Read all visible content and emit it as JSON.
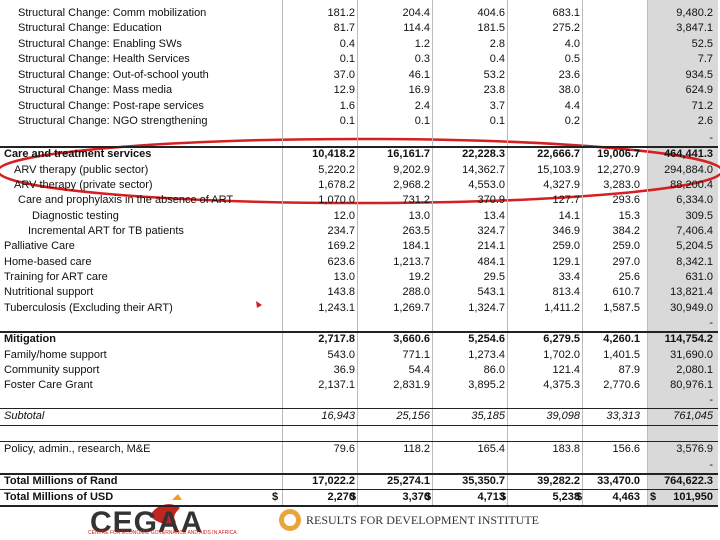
{
  "table": {
    "rows": [
      {
        "label": "Structural Change: Comm mobilization",
        "values": [
          "181.2",
          "204.4",
          "404.6",
          "683.1"
        ],
        "total": "9,480.2"
      },
      {
        "label": "Structural Change: Education",
        "values": [
          "81.7",
          "114.4",
          "181.5",
          "275.2"
        ],
        "total": "3,847.1"
      },
      {
        "label": "Structural Change: Enabling SWs",
        "values": [
          "0.4",
          "1.2",
          "2.8",
          "4.0"
        ],
        "total": "52.5"
      },
      {
        "label": "Structural Change: Health Services",
        "values": [
          "0.1",
          "0.3",
          "0.4",
          "0.5"
        ],
        "total": "7.7"
      },
      {
        "label": "Structural Change: Out-of-school youth",
        "values": [
          "37.0",
          "46.1",
          "53.2",
          "23.6"
        ],
        "total": "934.5"
      },
      {
        "label": "Structural Change: Mass media",
        "values": [
          "12.9",
          "16.9",
          "23.8",
          "38.0"
        ],
        "total": "624.9"
      },
      {
        "label": "Structural Change: Post-rape services",
        "values": [
          "1.6",
          "2.4",
          "3.7",
          "4.4"
        ],
        "total": "71.2"
      },
      {
        "label": "Structural Change: NGO strengthening",
        "values": [
          "0.1",
          "0.1",
          "0.1",
          "0.2"
        ],
        "total": "2.6"
      },
      {
        "total": "-"
      },
      {
        "label": "Care and treatment services",
        "values": [
          "10,418.2",
          "16,161.7",
          "22,228.3",
          "22,666.7",
          "19,006.7"
        ],
        "total": "464,441.3"
      },
      {
        "label": "ARV therapy (public sector)",
        "values": [
          "5,220.2",
          "9,202.9",
          "14,362.7",
          "15,103.9",
          "12,270.9"
        ],
        "total": "294,884.0"
      },
      {
        "label": "ARV therapy (private sector)",
        "values": [
          "1,678.2",
          "2,968.2",
          "4,553.0",
          "4,327.9",
          "3,283.0"
        ],
        "total": "88,200.4"
      },
      {
        "label": "Care and prophylaxis in the absence of ART",
        "values": [
          "1,070.0",
          "731.2",
          "370.9",
          "127.7",
          "293.6"
        ],
        "total": "6,334.0"
      },
      {
        "label": "Diagnostic testing",
        "values": [
          "12.0",
          "13.0",
          "13.4",
          "14.1",
          "15.3"
        ],
        "total": "309.5"
      },
      {
        "label": "Incremental ART for TB patients",
        "values": [
          "234.7",
          "263.5",
          "324.7",
          "346.9",
          "384.2"
        ],
        "total": "7,406.4"
      },
      {
        "label": "Palliative Care",
        "values": [
          "169.2",
          "184.1",
          "214.1",
          "259.0",
          "259.0"
        ],
        "total": "5,204.5"
      },
      {
        "label": "Home-based care",
        "values": [
          "623.6",
          "1,213.7",
          "484.1",
          "129.1",
          "297.0"
        ],
        "total": "8,342.1"
      },
      {
        "label": "Training for ART care",
        "values": [
          "13.0",
          "19.2",
          "29.5",
          "33.4",
          "25.6"
        ],
        "total": "631.0"
      },
      {
        "label": "Nutritional support",
        "values": [
          "143.8",
          "288.0",
          "543.1",
          "813.4",
          "610.7"
        ],
        "total": "13,821.4"
      },
      {
        "label": "Tuberculosis (Excluding their ART)",
        "values": [
          "1,243.1",
          "1,269.7",
          "1,324.7",
          "1,411.2",
          "1,587.5"
        ],
        "total": "30,949.0"
      },
      {
        "total": "-"
      },
      {
        "label": "Mitigation",
        "values": [
          "2,717.8",
          "3,660.6",
          "5,254.6",
          "6,279.5",
          "4,260.1"
        ],
        "total": "114,754.2"
      },
      {
        "label": "Family/home support",
        "values": [
          "543.0",
          "771.1",
          "1,273.4",
          "1,702.0",
          "1,401.5"
        ],
        "total": "31,690.0"
      },
      {
        "label": "Community support",
        "values": [
          "36.9",
          "54.4",
          "86.0",
          "121.4",
          "87.9"
        ],
        "total": "2,080.1"
      },
      {
        "label": "Foster Care Grant",
        "values": [
          "2,137.1",
          "2,831.9",
          "3,895.2",
          "4,375.3",
          "2,770.6"
        ],
        "total": "80,976.1"
      },
      {
        "total": "-"
      },
      {
        "label": "Subtotal",
        "values": [
          "16,943",
          "25,156",
          "35,185",
          "39,098",
          "33,313"
        ],
        "total": "761,045"
      },
      {
        "label": "Policy, admin., research, M&E",
        "values": [
          "79.6",
          "118.2",
          "165.4",
          "183.8",
          "156.6"
        ],
        "total": "3,576.9"
      },
      {
        "total": "-"
      },
      {
        "label": "Total Millions of Rand",
        "values": [
          "17,022.2",
          "25,274.1",
          "35,350.7",
          "39,282.2",
          "33,470.0"
        ],
        "total": "764,622.3"
      },
      {
        "label": "Total Millions of  USD",
        "currency": "$",
        "values": [
          "2,270",
          "3,370",
          "4,713",
          "5,238",
          "4,463"
        ],
        "total": "101,950"
      }
    ]
  },
  "footer": {
    "logo1": "CEGAA",
    "logo1_subtitle": "CENTRE FOR ECONOMIC GOVERNANCE AND AIDS IN AFRICA",
    "logo2": "RESULTS FOR DEVELOPMENT INSTITUTE"
  }
}
